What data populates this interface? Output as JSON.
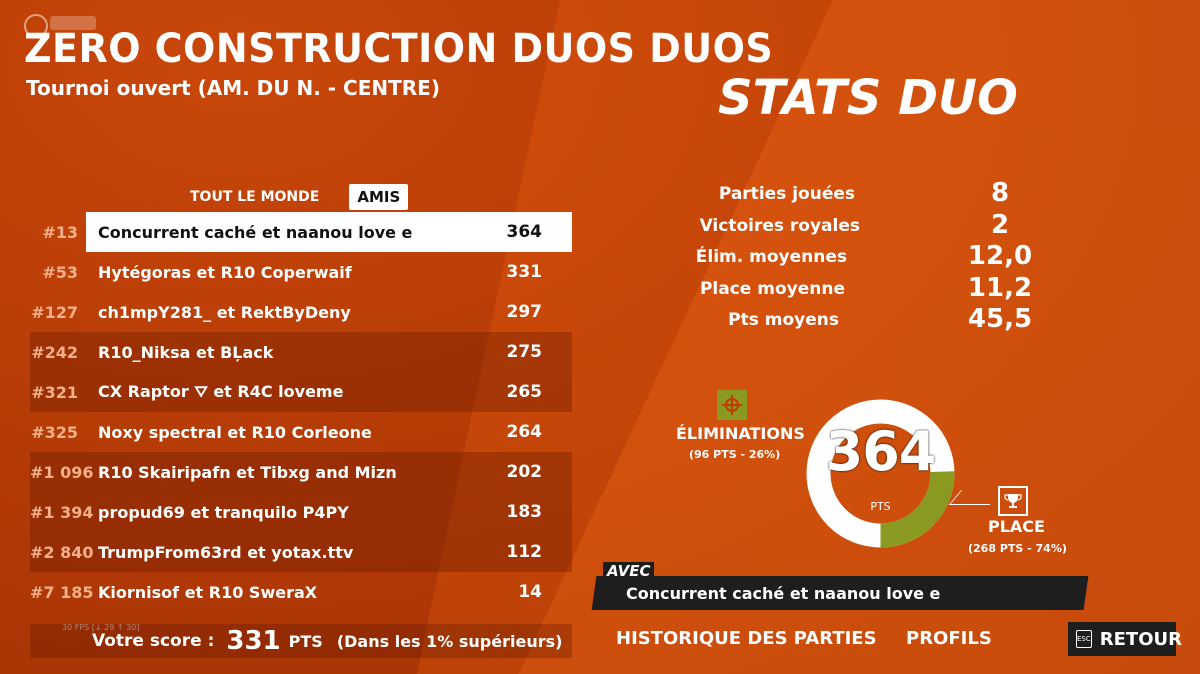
{
  "header": {
    "title": "ZERO CONSTRUCTION DUOS DUOS",
    "subtitle": "Tournoi ouvert (AM. DU N. - CENTRE)",
    "stats_title": "STATS DUO"
  },
  "tabs": [
    {
      "label": "TOUT LE MONDE",
      "active": false
    },
    {
      "label": "AMIS",
      "active": true
    }
  ],
  "leaderboard": [
    {
      "rank": "#13",
      "players": "Concurrent caché et naanou love e",
      "score": "364",
      "selected": true
    },
    {
      "rank": "#53",
      "players": "Hytégoras et R10 Coperwaif",
      "score": "331"
    },
    {
      "rank": "#127",
      "players": "ch1mpY281_ et RektByDeny",
      "score": "297"
    },
    {
      "rank": "#242",
      "players": "R10_Niksa et BĻack",
      "score": "275"
    },
    {
      "rank": "#321",
      "players": "CX Raptor ⛛ et R4C loveme",
      "score": "265"
    },
    {
      "rank": "#325",
      "players": "Noxy spectral et R10 Corleone",
      "score": "264"
    },
    {
      "rank": "#1 096",
      "players": "R10 Skairipafn et Tibxg and Mizn",
      "score": "202"
    },
    {
      "rank": "#1 394",
      "players": "propud69 et tranquilo P4PY",
      "score": "183"
    },
    {
      "rank": "#2 840",
      "players": "TrumpFrom63rd et yotax.ttv",
      "score": "112"
    },
    {
      "rank": "#7 185",
      "players": "Kiornisof et R10 SweraX",
      "score": "14"
    }
  ],
  "your_score": {
    "label": "Votre score :",
    "value": "331",
    "unit": "PTS",
    "note": "(Dans les 1% supérieurs)"
  },
  "fps": "30 FPS [↓ 29 ↑ 30]",
  "stats": [
    {
      "label": "Parties jouées",
      "value": "8"
    },
    {
      "label": "Victoires royales",
      "value": "2"
    },
    {
      "label": "Élim. moyennes",
      "value": "12,0"
    },
    {
      "label": "Place moyenne",
      "value": "11,2"
    },
    {
      "label": "Pts moyens",
      "value": "45,5"
    }
  ],
  "points_breakdown": {
    "total": "364",
    "unit": "PTS",
    "eliminations": {
      "label": "ÉLIMINATIONS",
      "detail": "(96 PTS - 26%)",
      "fraction": 0.26,
      "color": "#8a9a20",
      "icon": "crosshair-icon"
    },
    "place": {
      "label": "PLACE",
      "detail": "(268 PTS - 74%)",
      "fraction": 0.74,
      "color": "#ffffff",
      "icon": "trophy-icon"
    }
  },
  "teammate": {
    "tag": "AVEC",
    "name": "Concurrent caché et naanou love e"
  },
  "nav": {
    "history": "HISTORIQUE DES PARTIES",
    "profiles": "PROFILS",
    "back": "RETOUR",
    "esc": "ESC"
  }
}
